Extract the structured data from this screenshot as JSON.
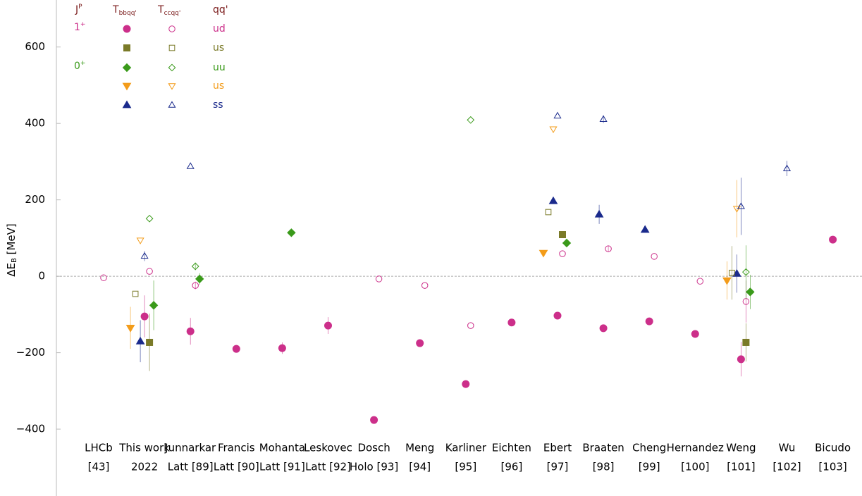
{
  "chart_data": {
    "type": "scatter",
    "ylabel": {
      "base": "ΔE",
      "sub": "B",
      "rest": " [MeV]"
    },
    "ylim": [
      -575,
      723
    ],
    "yticks": [
      {
        "value": -400,
        "label": "−400"
      },
      {
        "value": -200,
        "label": "−200"
      },
      0,
      200,
      400,
      600
    ],
    "zero_line": true,
    "categories": [
      "LHCb",
      "This work",
      "Junnarkar",
      "Francis",
      "Mohanta",
      "Leskovec",
      "Dosch",
      "Meng",
      "Karliner",
      "Eichten",
      "Ebert",
      "Braaten",
      "Cheng",
      "Hernandez",
      "Weng",
      "Wu",
      "Bicudo"
    ],
    "subcategories": [
      "[43]",
      "2022",
      "Latt [89]",
      "Latt [90]",
      "Latt [91]",
      "Latt [92]",
      "Holo [93]",
      "[94]",
      "[95]",
      "[96]",
      "[97]",
      "[98]",
      "[99]",
      "[100]",
      "[101]",
      "[102]",
      "[103]"
    ],
    "legend": {
      "jp_header": {
        "base": "J",
        "sup": "P"
      },
      "qq_header": "qq'"
    },
    "groups": [
      {
        "label": {
          "base": "T",
          "sub": "bbqq'"
        },
        "filled": true,
        "series": [
          {
            "name": "ud",
            "jp": {
              "base": "1",
              "sup": "+"
            },
            "marker": "circle",
            "color": "#cc2f8a",
            "values": [
              null,
              -105,
              -144,
              -190,
              -188,
              -129,
              -376,
              -175,
              -282,
              -121,
              -103,
              -136,
              -118,
              -151,
              -217,
              null,
              96
            ],
            "errors": [
              null,
              55,
              35,
              10,
              15,
              22,
              null,
              null,
              null,
              null,
              null,
              10,
              null,
              null,
              45,
              null,
              null
            ]
          },
          {
            "name": "us",
            "marker": "square",
            "color": "#7a7a28",
            "values": [
              null,
              -173,
              null,
              null,
              null,
              null,
              null,
              null,
              null,
              null,
              109,
              null,
              null,
              null,
              -173,
              null,
              null
            ],
            "errors": [
              null,
              75,
              null,
              null,
              null,
              null,
              null,
              null,
              null,
              null,
              null,
              null,
              null,
              null,
              50,
              null,
              null
            ]
          },
          {
            "name": "uu",
            "jp": {
              "base": "0",
              "sup": "+"
            },
            "marker": "diamond",
            "color": "#3a9a1a",
            "values": [
              null,
              -76,
              -7,
              null,
              114,
              null,
              null,
              null,
              null,
              null,
              87,
              null,
              null,
              null,
              -41,
              null,
              null
            ],
            "errors": [
              null,
              65,
              15,
              null,
              null,
              null,
              null,
              null,
              null,
              null,
              null,
              null,
              null,
              null,
              45,
              null,
              null
            ]
          },
          {
            "name": "us",
            "marker": "down",
            "color": "#f39c1a",
            "values": [
              null,
              -135,
              null,
              null,
              null,
              null,
              null,
              null,
              null,
              null,
              61,
              null,
              null,
              null,
              -11,
              null,
              null
            ],
            "errors": [
              null,
              55,
              null,
              null,
              null,
              null,
              null,
              null,
              null,
              null,
              null,
              null,
              null,
              null,
              50,
              null,
              null
            ]
          },
          {
            "name": "ss",
            "marker": "up",
            "color": "#1a2a8c",
            "values": [
              null,
              -170,
              null,
              null,
              null,
              null,
              null,
              null,
              null,
              null,
              197,
              162,
              122,
              null,
              7,
              null,
              null
            ],
            "errors": [
              null,
              55,
              null,
              null,
              null,
              null,
              null,
              null,
              null,
              null,
              null,
              25,
              null,
              null,
              50,
              null,
              null
            ]
          }
        ]
      },
      {
        "label": {
          "base": "T",
          "sub": "ccqq'"
        },
        "filled": false,
        "series": [
          {
            "name": "ud",
            "marker": "circle",
            "color": "#cc2f8a",
            "values": [
              -4,
              13,
              -24,
              null,
              null,
              null,
              -7,
              -24,
              -129,
              null,
              59,
              72,
              52,
              -13,
              -66,
              null,
              null
            ],
            "errors": [
              null,
              null,
              10,
              null,
              null,
              null,
              null,
              null,
              null,
              null,
              null,
              8,
              null,
              null,
              55,
              null,
              null
            ]
          },
          {
            "name": "us",
            "marker": "square",
            "color": "#7a7a28",
            "values": [
              null,
              -46,
              null,
              null,
              null,
              null,
              null,
              null,
              null,
              null,
              168,
              null,
              null,
              null,
              9,
              null,
              null
            ],
            "errors": [
              null,
              null,
              null,
              null,
              null,
              null,
              null,
              null,
              null,
              null,
              null,
              null,
              null,
              null,
              70,
              null,
              null
            ]
          },
          {
            "name": "uu",
            "marker": "diamond",
            "color": "#3a9a1a",
            "values": [
              null,
              151,
              26,
              null,
              null,
              null,
              null,
              null,
              409,
              null,
              null,
              null,
              null,
              null,
              11,
              null,
              null
            ],
            "errors": [
              null,
              null,
              10,
              null,
              null,
              null,
              null,
              null,
              null,
              null,
              null,
              null,
              null,
              null,
              70,
              null,
              null
            ]
          },
          {
            "name": "us",
            "marker": "down",
            "color": "#f39c1a",
            "values": [
              null,
              94,
              null,
              null,
              null,
              null,
              null,
              null,
              null,
              null,
              385,
              null,
              null,
              null,
              177,
              null,
              null
            ],
            "errors": [
              null,
              null,
              null,
              null,
              null,
              null,
              null,
              null,
              null,
              null,
              null,
              null,
              null,
              null,
              75,
              null,
              null
            ]
          },
          {
            "name": "ss",
            "marker": "up",
            "color": "#1a2a8c",
            "values": [
              null,
              53,
              288,
              null,
              null,
              null,
              null,
              null,
              null,
              null,
              420,
              411,
              null,
              null,
              183,
              282,
              null
            ],
            "errors": [
              null,
              13,
              null,
              null,
              null,
              null,
              null,
              null,
              null,
              null,
              null,
              10,
              null,
              null,
              75,
              20,
              null
            ]
          }
        ]
      }
    ]
  }
}
